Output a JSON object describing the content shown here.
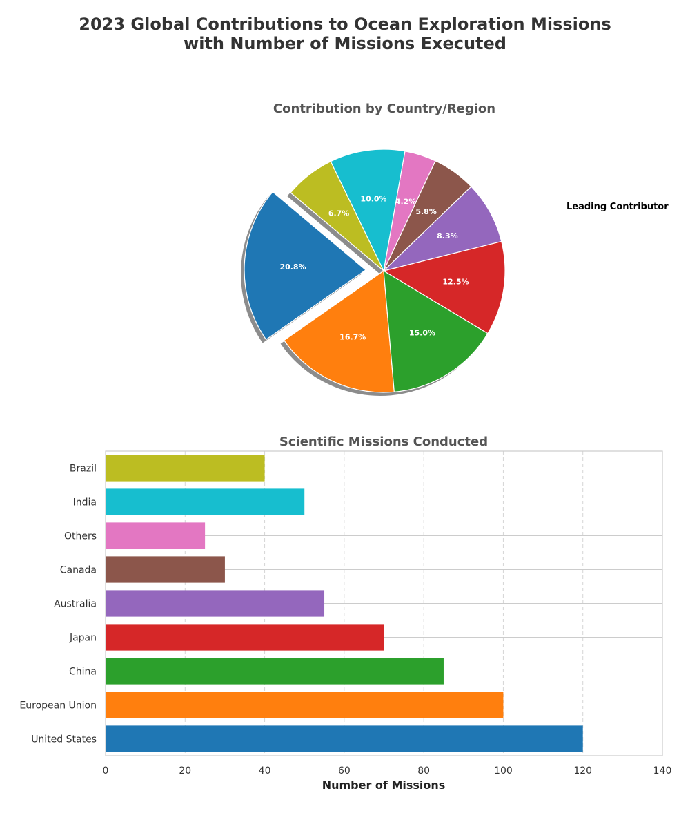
{
  "figure": {
    "title_line1": "2023 Global Contributions to Ocean Exploration Missions",
    "title_line2": "with Number of Missions Executed"
  },
  "chart_data": [
    {
      "type": "pie",
      "title": "Contribution by Country/Region",
      "slices": [
        {
          "label": "United States",
          "value": 20.8,
          "pct_label": "20.8%",
          "color": "#1f77b4",
          "exploded": true
        },
        {
          "label": "European Union",
          "value": 16.7,
          "pct_label": "16.7%",
          "color": "#ff7f0e"
        },
        {
          "label": "China",
          "value": 15.0,
          "pct_label": "15.0%",
          "color": "#2ca02c"
        },
        {
          "label": "Japan",
          "value": 12.5,
          "pct_label": "12.5%",
          "color": "#d62728"
        },
        {
          "label": "Australia",
          "value": 8.3,
          "pct_label": "8.3%",
          "color": "#9467bd"
        },
        {
          "label": "Canada",
          "value": 5.8,
          "pct_label": "5.8%",
          "color": "#8c564b"
        },
        {
          "label": "Others",
          "value": 4.2,
          "pct_label": "4.2%",
          "color": "#e377c2"
        },
        {
          "label": "India",
          "value": 10.0,
          "pct_label": "10.0%",
          "color": "#17becf"
        },
        {
          "label": "Brazil",
          "value": 6.7,
          "pct_label": "6.7%",
          "color": "#bcbd22"
        }
      ],
      "annotation": "Leading Contributor",
      "shadow": true
    },
    {
      "type": "bar",
      "orientation": "horizontal",
      "title": "Scientific Missions Conducted",
      "xlabel": "Number of Missions",
      "ylabel": "",
      "xlim": [
        0,
        140
      ],
      "xticks": [
        0,
        20,
        40,
        60,
        80,
        100,
        120,
        140
      ],
      "grid": true,
      "categories": [
        "United States",
        "European Union",
        "China",
        "Japan",
        "Australia",
        "Canada",
        "Others",
        "India",
        "Brazil"
      ],
      "values": [
        120,
        100,
        85,
        70,
        55,
        30,
        25,
        50,
        40
      ],
      "colors": [
        "#1f77b4",
        "#ff7f0e",
        "#2ca02c",
        "#d62728",
        "#9467bd",
        "#8c564b",
        "#e377c2",
        "#17becf",
        "#bcbd22"
      ]
    }
  ]
}
